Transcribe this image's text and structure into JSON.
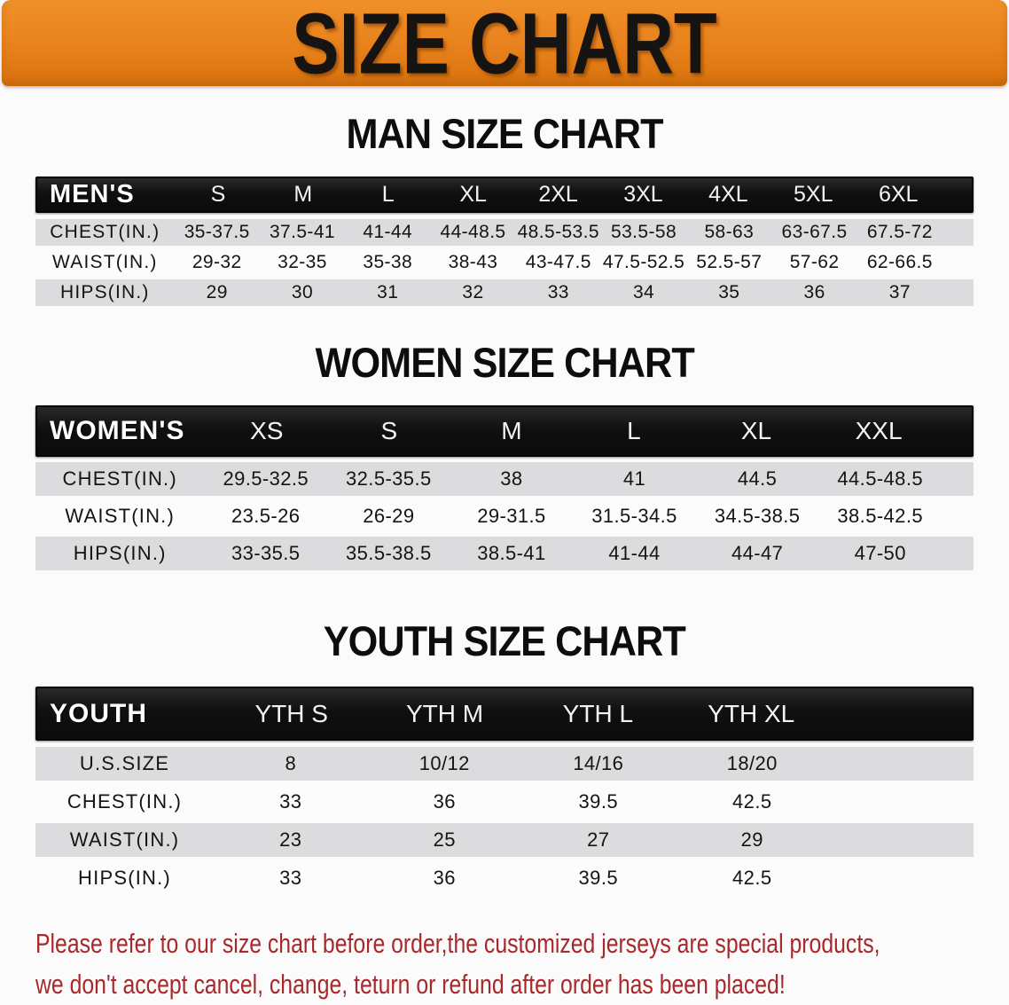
{
  "banner": {
    "title": "SIZE CHART"
  },
  "sections": [
    {
      "title": "MAN SIZE CHART",
      "header_label": "MEN'S",
      "columns": [
        "S",
        "M",
        "L",
        "XL",
        "2XL",
        "3XL",
        "4XL",
        "5XL",
        "6XL"
      ],
      "rows": [
        {
          "label": "CHEST(IN.)",
          "values": [
            "35-37.5",
            "37.5-41",
            "41-44",
            "44-48.5",
            "48.5-53.5",
            "53.5-58",
            "58-63",
            "63-67.5",
            "67.5-72"
          ]
        },
        {
          "label": "WAIST(IN.)",
          "values": [
            "29-32",
            "32-35",
            "35-38",
            "38-43",
            "43-47.5",
            "47.5-52.5",
            "52.5-57",
            "57-62",
            "62-66.5"
          ]
        },
        {
          "label": "HIPS(IN.)",
          "values": [
            "29",
            "30",
            "31",
            "32",
            "33",
            "34",
            "35",
            "36",
            "37"
          ]
        }
      ]
    },
    {
      "title": "WOMEN SIZE CHART",
      "header_label": "WOMEN'S",
      "columns": [
        "XS",
        "S",
        "M",
        "L",
        "XL",
        "XXL"
      ],
      "rows": [
        {
          "label": "CHEST(IN.)",
          "values": [
            "29.5-32.5",
            "32.5-35.5",
            "38",
            "41",
            "44.5",
            "44.5-48.5"
          ]
        },
        {
          "label": "WAIST(IN.)",
          "values": [
            "23.5-26",
            "26-29",
            "29-31.5",
            "31.5-34.5",
            "34.5-38.5",
            "38.5-42.5"
          ]
        },
        {
          "label": "HIPS(IN.)",
          "values": [
            "33-35.5",
            "35.5-38.5",
            "38.5-41",
            "41-44",
            "44-47",
            "47-50"
          ]
        }
      ]
    },
    {
      "title": "YOUTH SIZE CHART",
      "header_label": "YOUTH",
      "columns": [
        "YTH S",
        "YTH M",
        "YTH L",
        "YTH XL"
      ],
      "rows": [
        {
          "label": "U.S.SIZE",
          "values": [
            "8",
            "10/12",
            "14/16",
            "18/20"
          ]
        },
        {
          "label": "CHEST(IN.)",
          "values": [
            "33",
            "36",
            "39.5",
            "42.5"
          ]
        },
        {
          "label": "WAIST(IN.)",
          "values": [
            "23",
            "25",
            "27",
            "29"
          ]
        },
        {
          "label": "HIPS(IN.)",
          "values": [
            "33",
            "36",
            "39.5",
            "42.5"
          ]
        }
      ]
    }
  ],
  "disclaimer": {
    "lines": [
      "Please refer to our size chart before order,the customized jerseys are special products,",
      "we don't accept cancel, change, teturn or refund after order has been placed!"
    ]
  },
  "colors": {
    "banner_orange": "#e8811b",
    "banner_orange_light": "#f0902a",
    "banner_orange_dark": "#d9730e",
    "header_black": "#131313",
    "row_gray": "#dcdcde",
    "row_white": "#fcfcfc",
    "disclaimer_red": "#a8292b"
  }
}
